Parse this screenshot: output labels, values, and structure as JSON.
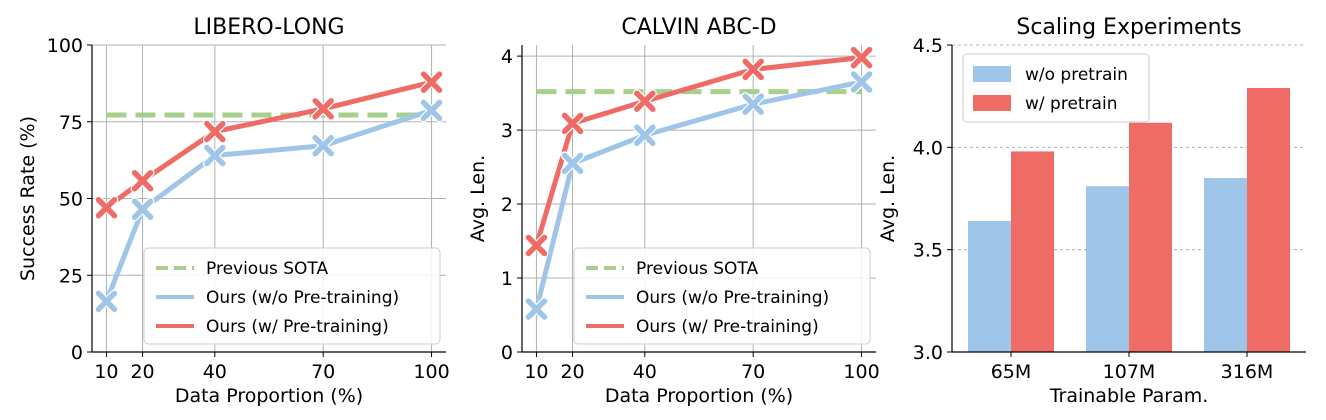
{
  "colors": {
    "sota": "#a8d08d",
    "ours_wo": "#9fc5e8",
    "ours_w": "#ef6b66",
    "grid": "#b0b0b0"
  },
  "chart_data": [
    {
      "type": "line",
      "title": "LIBERO-LONG",
      "xlabel": "Data Proportion (%)",
      "ylabel": "Success Rate (%)",
      "x": [
        10,
        20,
        40,
        70,
        100
      ],
      "xticks": [
        "10",
        "20",
        "40",
        "70",
        "100"
      ],
      "ylim": [
        0,
        100
      ],
      "yticks": [
        "0",
        "25",
        "50",
        "75",
        "100"
      ],
      "grid": true,
      "legend_position": "lower-right",
      "reference": {
        "name": "Previous SOTA",
        "value": 77.2
      },
      "series": [
        {
          "name": "Ours (w/o Pre-training)",
          "values": [
            16.5,
            46.5,
            64,
            67.2,
            78.7
          ]
        },
        {
          "name": "Ours (w/ Pre-training)",
          "values": [
            47,
            55.8,
            71.8,
            79.2,
            87.9
          ]
        }
      ]
    },
    {
      "type": "line",
      "title": "CALVIN ABC-D",
      "xlabel": "Data Proportion (%)",
      "ylabel": "Avg. Len.",
      "x": [
        10,
        20,
        40,
        70,
        100
      ],
      "xticks": [
        "10",
        "20",
        "40",
        "70",
        "100"
      ],
      "ylim": [
        0,
        4.15
      ],
      "yticks": [
        "0",
        "1",
        "2",
        "3",
        "4"
      ],
      "grid": true,
      "legend_position": "lower-right",
      "reference": {
        "name": "Previous SOTA",
        "value": 3.52
      },
      "series": [
        {
          "name": "Ours (w/o Pre-training)",
          "values": [
            0.58,
            2.55,
            2.93,
            3.35,
            3.65
          ]
        },
        {
          "name": "Ours (w/ Pre-training)",
          "values": [
            1.44,
            3.09,
            3.39,
            3.82,
            3.98
          ]
        }
      ]
    },
    {
      "type": "bar",
      "title": "Scaling Experiments",
      "xlabel": "Trainable Param.",
      "ylabel": "Avg. Len.",
      "categories": [
        "65M",
        "107M",
        "316M"
      ],
      "ylim": [
        3.0,
        4.5
      ],
      "yticks": [
        "3.0",
        "3.5",
        "4.0",
        "4.5"
      ],
      "grid": true,
      "legend_position": "top-left",
      "series": [
        {
          "name": "w/o pretrain",
          "values": [
            3.64,
            3.81,
            3.85
          ]
        },
        {
          "name": "w/ pretrain",
          "values": [
            3.98,
            4.12,
            4.29
          ]
        }
      ]
    }
  ]
}
